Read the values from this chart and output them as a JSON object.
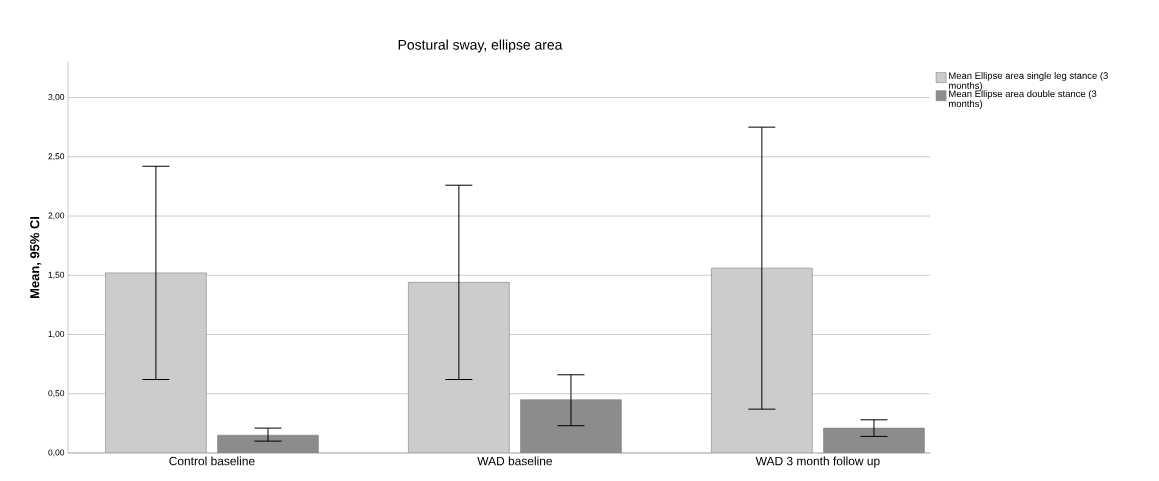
{
  "chart_data": {
    "type": "bar",
    "title": "Postural sway, ellipse area",
    "ylabel": "Mean, 95% CI",
    "categories": [
      "Control baseline",
      "WAD baseline",
      "WAD 3 month follow up"
    ],
    "series": [
      {
        "name": "Mean Ellipse area single leg stance (3 months)",
        "color": "#cccccc",
        "values": [
          1.52,
          1.44,
          1.56
        ],
        "errors": [
          [
            0.62,
            2.42
          ],
          [
            0.62,
            2.26
          ],
          [
            0.37,
            2.75
          ]
        ]
      },
      {
        "name": "Mean Ellipse area double stance (3 months)",
        "color": "#8c8c8c",
        "values": [
          0.15,
          0.45,
          0.21
        ],
        "errors": [
          [
            0.1,
            0.21
          ],
          [
            0.23,
            0.66
          ],
          [
            0.14,
            0.28
          ]
        ]
      }
    ],
    "ylim": [
      0,
      3.3
    ],
    "yticks": [
      {
        "value": 0,
        "label": "0,00"
      },
      {
        "value": 0.5,
        "label": "0,50"
      },
      {
        "value": 1,
        "label": "1,00"
      },
      {
        "value": 1.5,
        "label": "1,50"
      },
      {
        "value": 2,
        "label": "2,00"
      },
      {
        "value": 2.5,
        "label": "2,50"
      },
      {
        "value": 3,
        "label": "3,00"
      }
    ],
    "grid": "y",
    "legend": "top right"
  }
}
